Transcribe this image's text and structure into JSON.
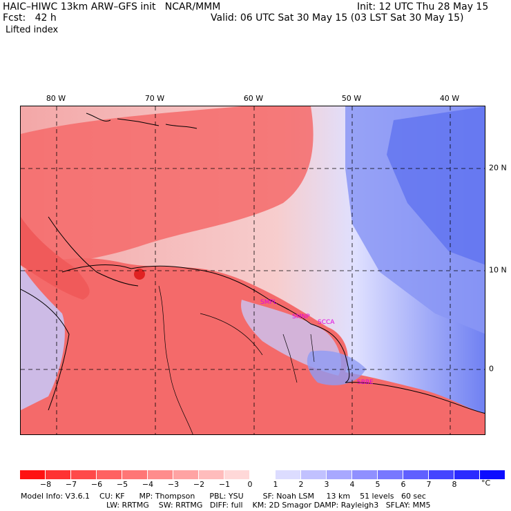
{
  "header": {
    "title": "HAIC–HIWC 13km ARW–GFS init   NCAR/MMM",
    "init": "Init: 12 UTC Thu 28 May 15",
    "fcst": "Fcst:   42 h",
    "valid": "Valid: 06 UTC Sat 30 May 15 (03 LST Sat 30 May 15)",
    "field": "Lifted index"
  },
  "map": {
    "lon_labels": [
      "80 W",
      "70 W",
      "60 W",
      "50 W",
      "40 W"
    ],
    "lat_labels": [
      "20 N",
      "10 N",
      "0"
    ],
    "stations": [
      "SMPL",
      "SMNP",
      "SCCA",
      "SBBE"
    ],
    "land_color": "#f46a6a",
    "ocean_color": "#f3b6b6",
    "cold_color": "#5a6ef0"
  },
  "colorbar": {
    "colors": [
      "#ff1212",
      "#ff3232",
      "#ff4a4a",
      "#ff6161",
      "#ff7676",
      "#ff8c8c",
      "#ffa3a3",
      "#ffbcbc",
      "#ffd8d8",
      "#ffffff",
      "#dcdcff",
      "#c1c1ff",
      "#a8a8ff",
      "#9090ff",
      "#7878ff",
      "#6060ff",
      "#4545ff",
      "#2a2aff",
      "#0c0cff"
    ],
    "labels": [
      "−8",
      "−7",
      "−6",
      "−5",
      "−4",
      "−3",
      "−2",
      "−1",
      "0",
      "1",
      "2",
      "3",
      "4",
      "5",
      "6",
      "7",
      "8"
    ],
    "unit": "°C"
  },
  "footer": {
    "line1": "Model Info: V3.6.1    CU: KF      MP: Thompson      PBL: YSU        SF: Noah LSM     13 km    51 levels   60 sec",
    "line2": "LW: RRTMG    SW: RRTMG   DIFF: full    KM: 2D Smagor DAMP: Rayleigh3   SFLAY: MM5"
  }
}
